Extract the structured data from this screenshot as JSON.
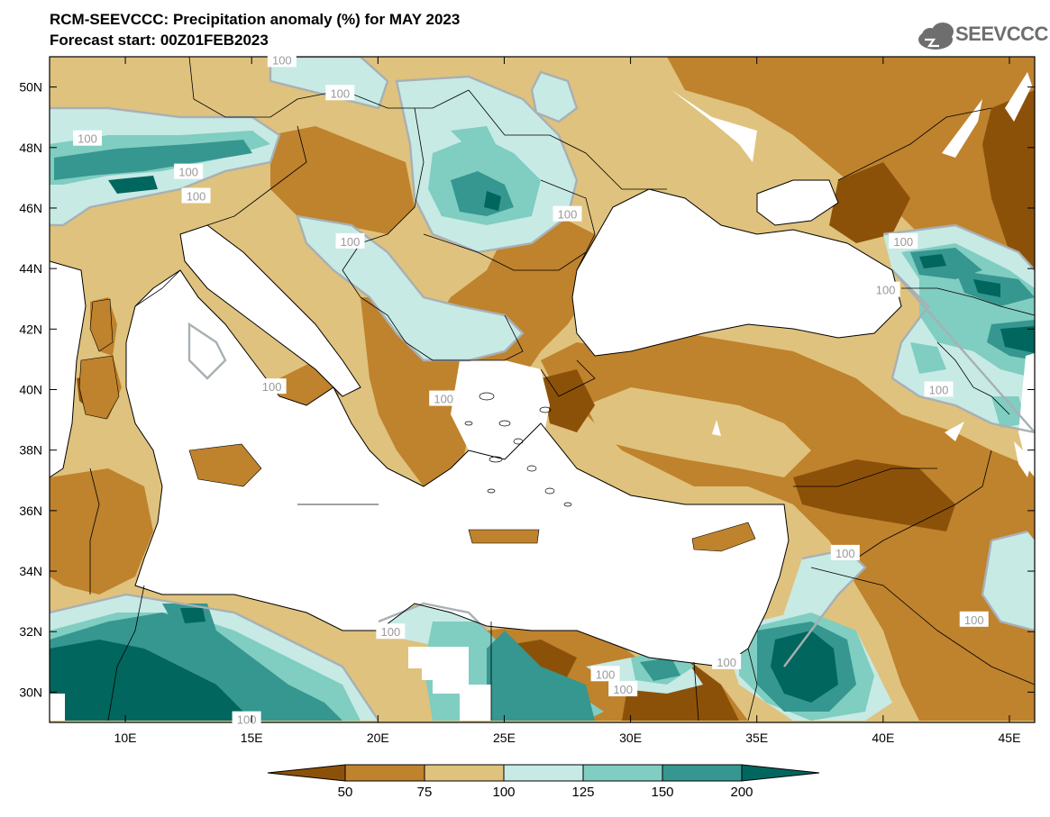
{
  "title": "RCM-SEEVCCC: Precipitation anomaly (%) for MAY 2023",
  "subtitle": "Forecast start: 00Z01FEB2023",
  "logo_text": "SEEVCCC",
  "logo_icon": "cloud-icon",
  "map": {
    "lon_range": [
      7,
      46
    ],
    "lat_range": [
      29,
      51
    ],
    "lon_ticks": [
      "10E",
      "15E",
      "20E",
      "25E",
      "30E",
      "35E",
      "40E",
      "45E"
    ],
    "lon_tick_values": [
      10,
      15,
      20,
      25,
      30,
      35,
      40,
      45
    ],
    "lat_ticks": [
      "50N",
      "48N",
      "46N",
      "44N",
      "42N",
      "40N",
      "38N",
      "36N",
      "34N",
      "32N",
      "30N"
    ],
    "lat_tick_values": [
      50,
      48,
      46,
      44,
      42,
      40,
      38,
      36,
      34,
      32,
      30
    ],
    "contour_label": "100",
    "contour_labels": [
      {
        "text": "100",
        "lon": 16.2,
        "lat": 50.9
      },
      {
        "text": "100",
        "lon": 18.5,
        "lat": 49.8
      },
      {
        "text": "100",
        "lon": 8.5,
        "lat": 48.3
      },
      {
        "text": "100",
        "lon": 12.5,
        "lat": 47.2
      },
      {
        "text": "100",
        "lon": 12.8,
        "lat": 46.4
      },
      {
        "text": "100",
        "lon": 18.9,
        "lat": 44.9
      },
      {
        "text": "100",
        "lon": 27.5,
        "lat": 45.8
      },
      {
        "text": "100",
        "lon": 15.8,
        "lat": 40.1
      },
      {
        "text": "100",
        "lon": 22.6,
        "lat": 39.7
      },
      {
        "text": "100",
        "lon": 40.8,
        "lat": 44.9
      },
      {
        "text": "100",
        "lon": 40.1,
        "lat": 43.3
      },
      {
        "text": "100",
        "lon": 42.2,
        "lat": 40.0
      },
      {
        "text": "100",
        "lon": 38.5,
        "lat": 34.6
      },
      {
        "text": "100",
        "lon": 43.6,
        "lat": 32.4
      },
      {
        "text": "100",
        "lon": 20.5,
        "lat": 32.0
      },
      {
        "text": "100",
        "lon": 29.0,
        "lat": 30.6
      },
      {
        "text": "100",
        "lon": 29.7,
        "lat": 30.1
      },
      {
        "text": "100",
        "lon": 33.8,
        "lat": 31.0
      },
      {
        "text": "100",
        "lon": 14.8,
        "lat": 29.1
      }
    ]
  },
  "colorbar": {
    "labels": [
      "50",
      "75",
      "100",
      "125",
      "150",
      "200"
    ],
    "colors": [
      "#8c5109",
      "#bf822d",
      "#dfc27d",
      "#c7eae5",
      "#80cdc1",
      "#35978f",
      "#01665e"
    ]
  },
  "palette": {
    "very_dry": "#8c5109",
    "dry": "#bf822d",
    "slightly_dry": "#dfc27d",
    "slightly_wet": "#c7eae5",
    "wet": "#80cdc1",
    "very_wet": "#35978f",
    "extreme_wet": "#01665e",
    "contour": "#a8b0b4"
  }
}
